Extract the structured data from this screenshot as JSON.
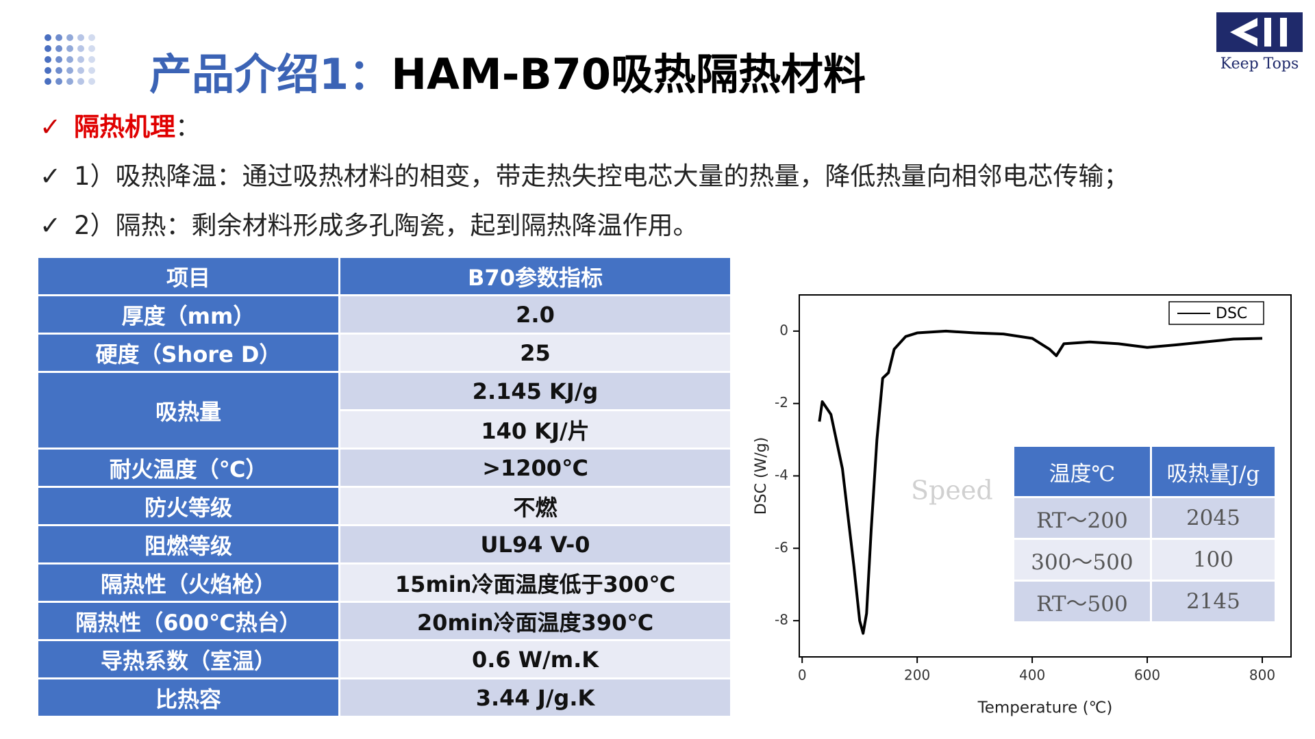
{
  "header": {
    "title_prefix": "产品介绍1：",
    "title_main": "HAM-B70吸热隔热材料",
    "logo": "Keep Tops"
  },
  "bullets": {
    "heading": "隔热机理",
    "heading_suffix": "：",
    "items": [
      "1）吸热降温：通过吸热材料的相变，带走热失控电芯大量的热量，降低热量向相邻电芯传输；",
      "2）隔热：剩余材料形成多孔陶瓷，起到隔热降温作用。"
    ]
  },
  "table": {
    "header": [
      "项目",
      "B70参数指标"
    ],
    "rows": [
      {
        "label": "厚度（mm）",
        "values": [
          "2.0"
        ]
      },
      {
        "label": "硬度（Shore D）",
        "values": [
          "25"
        ]
      },
      {
        "label": "吸热量",
        "values": [
          "2.145 KJ/g",
          "140 KJ/片"
        ]
      },
      {
        "label": "耐火温度（℃）",
        "values": [
          ">1200℃"
        ]
      },
      {
        "label": "防火等级",
        "values": [
          "不燃"
        ]
      },
      {
        "label": "阻燃等级",
        "values": [
          "UL94 V-0"
        ]
      },
      {
        "label": "隔热性（火焰枪）",
        "values": [
          "15min冷面温度低于300℃"
        ]
      },
      {
        "label": "隔热性（600℃热台）",
        "values": [
          "20min冷面温度390℃"
        ]
      },
      {
        "label": "导热系数（室温）",
        "values": [
          "0.6 W/m.K"
        ]
      },
      {
        "label": "比热容",
        "values": [
          "3.44 J/g.K"
        ]
      }
    ]
  },
  "chart_data": {
    "type": "line",
    "x_label": "Temperature (℃)",
    "y_label": "DSC (W/g)",
    "annotation": "Speed",
    "x": [
      30,
      35,
      50,
      70,
      90,
      100,
      106,
      112,
      120,
      130,
      140,
      150,
      160,
      180,
      200,
      250,
      300,
      350,
      400,
      430,
      442,
      455,
      500,
      550,
      600,
      650,
      700,
      750,
      800
    ],
    "series": [
      {
        "name": "DSC",
        "color": "#000000",
        "values": [
          -2.5,
          -1.95,
          -2.3,
          -3.8,
          -6.5,
          -8.0,
          -8.35,
          -7.8,
          -5.5,
          -3.0,
          -1.3,
          -1.15,
          -0.5,
          -0.15,
          -0.05,
          0.0,
          -0.05,
          -0.08,
          -0.2,
          -0.5,
          -0.68,
          -0.35,
          -0.3,
          -0.35,
          -0.45,
          -0.38,
          -0.3,
          -0.22,
          -0.2
        ]
      }
    ],
    "xlim": [
      -5,
      850
    ],
    "ylim": [
      -9,
      1
    ],
    "xticks": [
      0,
      200,
      400,
      600,
      800
    ],
    "yticks": [
      0,
      -2,
      -4,
      -6,
      -8
    ],
    "legend": "top-right",
    "inset_table": {
      "header": [
        "温度℃",
        "吸热量J/g"
      ],
      "rows": [
        [
          "RT～200",
          "2045"
        ],
        [
          "300～500",
          "100"
        ],
        [
          "RT～500",
          "2145"
        ]
      ]
    }
  }
}
